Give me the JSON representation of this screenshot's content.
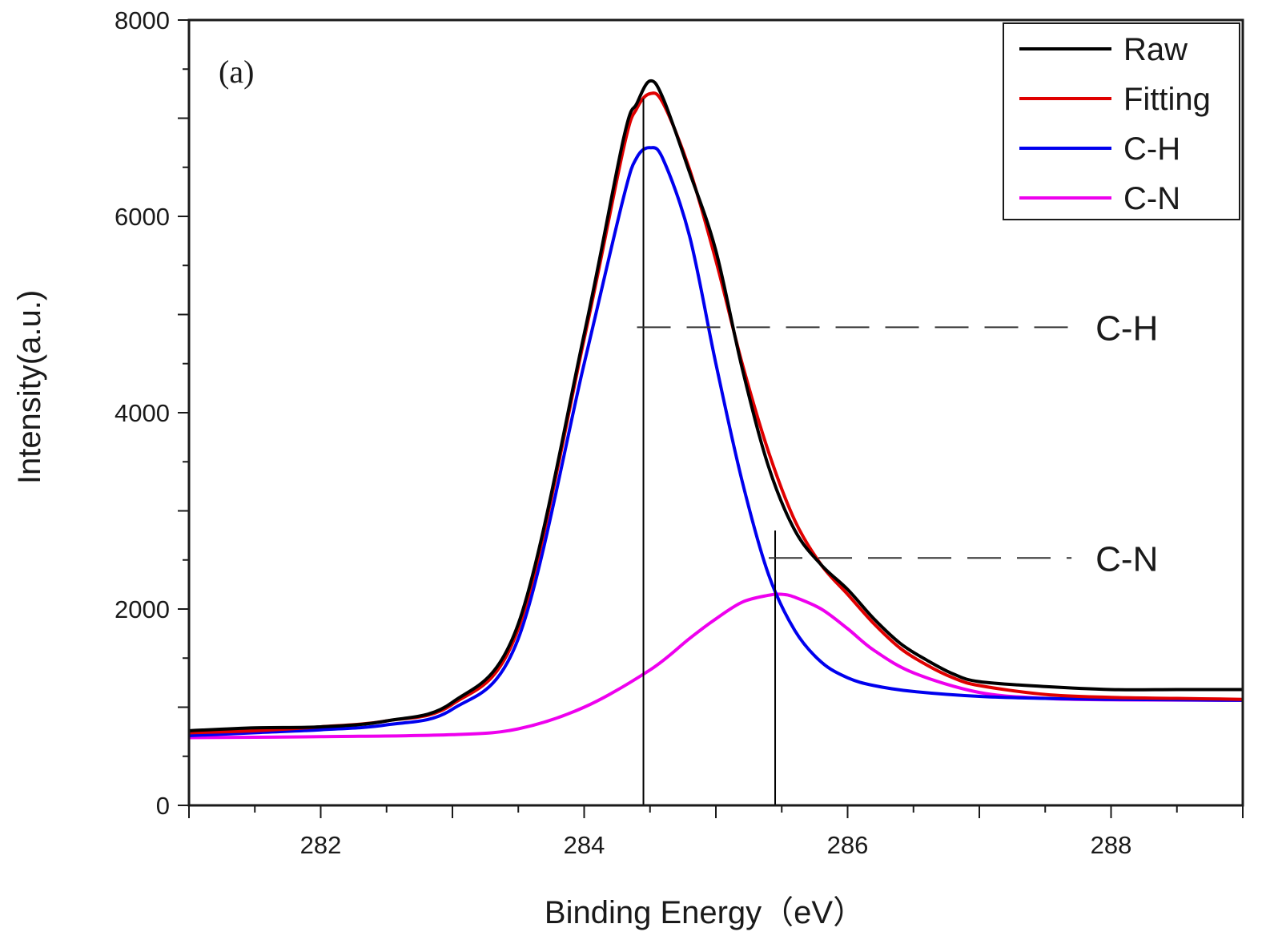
{
  "chart_data": {
    "type": "line",
    "panel_label": "(a)",
    "xlabel": "Binding Energy（eV）",
    "ylabel": "Intensity(a.u.)",
    "xlim": [
      281,
      289
    ],
    "ylim": [
      0,
      8000
    ],
    "x_ticks": [
      282,
      284,
      286,
      288
    ],
    "x_tick_labels": [
      "282",
      "284",
      "286",
      "288"
    ],
    "y_ticks": [
      0,
      2000,
      4000,
      6000,
      8000
    ],
    "y_tick_labels": [
      "0",
      "2000",
      "4000",
      "6000",
      "8000"
    ],
    "legend_position": "top-right",
    "series": [
      {
        "name": "Raw",
        "color": "#000000",
        "x": [
          281.0,
          281.5,
          282.0,
          282.5,
          283.0,
          283.5,
          284.0,
          284.3,
          284.4,
          284.5,
          284.6,
          284.8,
          285.0,
          285.2,
          285.4,
          285.6,
          285.8,
          286.0,
          286.2,
          286.4,
          286.6,
          286.8,
          287.0,
          287.5,
          288.0,
          288.5,
          289.0
        ],
        "y": [
          760,
          790,
          800,
          860,
          1050,
          1850,
          4800,
          6800,
          7150,
          7380,
          7200,
          6450,
          5650,
          4450,
          3450,
          2800,
          2450,
          2200,
          1900,
          1650,
          1480,
          1340,
          1260,
          1210,
          1180,
          1180,
          1180
        ]
      },
      {
        "name": "Fitting",
        "color": "#e00000",
        "x": [
          281.0,
          281.5,
          282.0,
          282.5,
          283.0,
          283.5,
          284.0,
          284.3,
          284.4,
          284.5,
          284.6,
          284.8,
          285.0,
          285.2,
          285.4,
          285.6,
          285.8,
          286.0,
          286.2,
          286.4,
          286.6,
          286.8,
          287.0,
          287.5,
          288.0,
          288.5,
          289.0
        ],
        "y": [
          740,
          760,
          800,
          860,
          1030,
          1800,
          4750,
          6700,
          7100,
          7250,
          7150,
          6480,
          5550,
          4500,
          3600,
          2900,
          2450,
          2150,
          1850,
          1600,
          1430,
          1300,
          1220,
          1130,
          1100,
          1090,
          1080
        ]
      },
      {
        "name": "C-H",
        "color": "#0000ee",
        "x": [
          281.0,
          281.5,
          282.0,
          282.5,
          283.0,
          283.5,
          284.0,
          284.3,
          284.4,
          284.5,
          284.6,
          284.8,
          285.0,
          285.2,
          285.4,
          285.6,
          285.8,
          286.0,
          286.2,
          286.5,
          287.0,
          287.5,
          288.0,
          289.0
        ],
        "y": [
          710,
          740,
          770,
          820,
          980,
          1700,
          4500,
          6200,
          6600,
          6700,
          6580,
          5800,
          4500,
          3300,
          2350,
          1780,
          1460,
          1300,
          1220,
          1160,
          1110,
          1090,
          1080,
          1070
        ]
      },
      {
        "name": "C-N",
        "color": "#ee00ee",
        "x": [
          281.0,
          282.0,
          283.0,
          283.5,
          284.0,
          284.5,
          284.8,
          285.0,
          285.2,
          285.4,
          285.5,
          285.6,
          285.8,
          286.0,
          286.2,
          286.5,
          287.0,
          287.5,
          288.0,
          289.0
        ],
        "y": [
          690,
          700,
          720,
          780,
          1000,
          1380,
          1700,
          1900,
          2070,
          2140,
          2150,
          2120,
          2000,
          1800,
          1580,
          1350,
          1150,
          1090,
          1075,
          1070
        ]
      }
    ],
    "annotations": [
      {
        "label": "C-H",
        "x": 284.45,
        "y_from": 0,
        "y_to": 7200,
        "dash_y": 4870,
        "dash_x_end": 287.7
      },
      {
        "label": "C-N",
        "x": 285.45,
        "y_from": 0,
        "y_to": 2800,
        "dash_y": 2520,
        "dash_x_end": 287.7
      }
    ]
  }
}
